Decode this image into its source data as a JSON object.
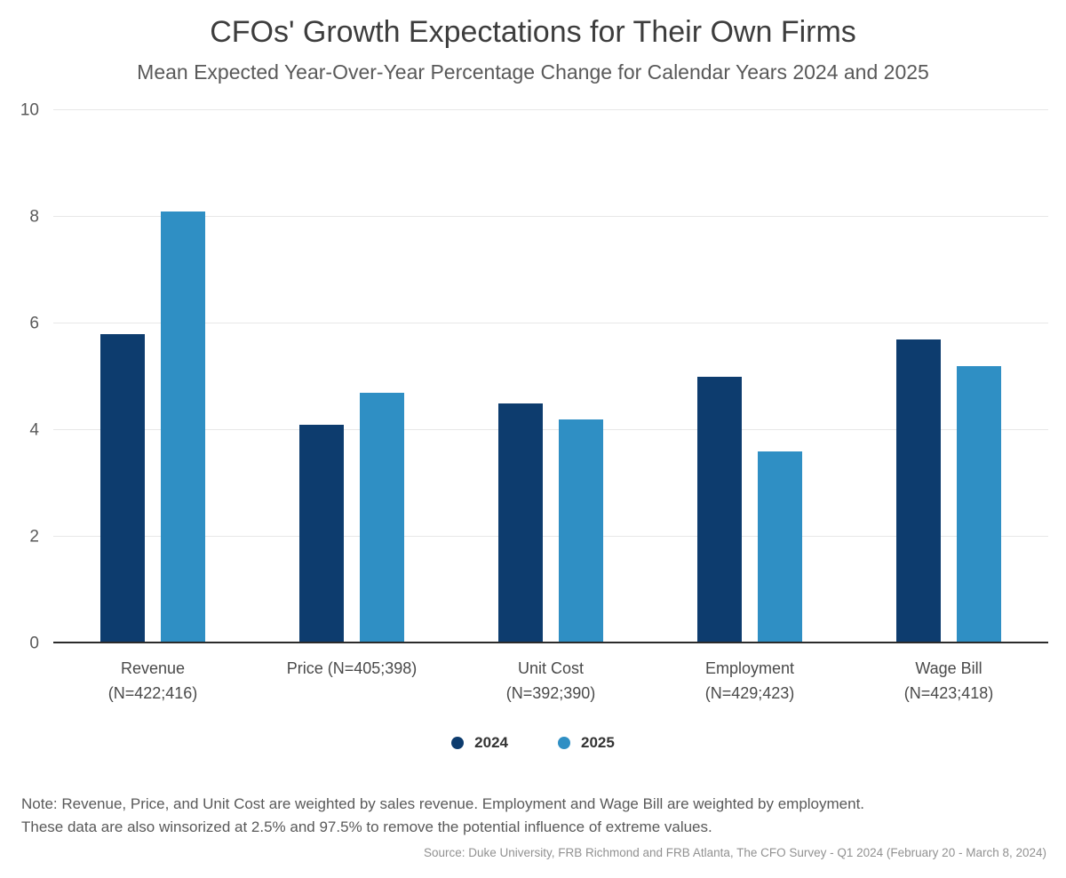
{
  "title": "CFOs' Growth Expectations for Their Own Firms",
  "subtitle": "Mean Expected Year-Over-Year Percentage Change for Calendar Years 2024 and 2025",
  "chart_data": {
    "type": "bar",
    "categories": [
      [
        "Revenue",
        "(N=422;416)"
      ],
      [
        "Price (N=405;398)"
      ],
      [
        "Unit Cost",
        "(N=392;390)"
      ],
      [
        "Employment",
        "(N=429;423)"
      ],
      [
        "Wage Bill",
        "(N=423;418)"
      ]
    ],
    "series": [
      {
        "name": "2024",
        "color": "#0d3c6e",
        "values": [
          5.8,
          4.1,
          4.5,
          5.0,
          5.7
        ]
      },
      {
        "name": "2025",
        "color": "#2f8fc4",
        "values": [
          8.1,
          4.7,
          4.2,
          3.6,
          5.2
        ]
      }
    ],
    "ylim": [
      0,
      10
    ],
    "yticks": [
      0,
      2,
      4,
      6,
      8,
      10
    ],
    "grid": true,
    "legend_position": "bottom",
    "colors": {
      "gridline": "#e7e7e7",
      "baseline": "#2b2b2b"
    }
  },
  "notes": {
    "line1": "Note: Revenue, Price, and Unit Cost are weighted by sales revenue. Employment and Wage Bill are weighted by employment.",
    "line2": "These data are also winsorized at 2.5% and 97.5% to remove the potential influence of extreme values."
  },
  "source": "Source: Duke University, FRB Richmond and FRB Atlanta, The CFO Survey - Q1 2024 (February 20 - March 8, 2024)"
}
